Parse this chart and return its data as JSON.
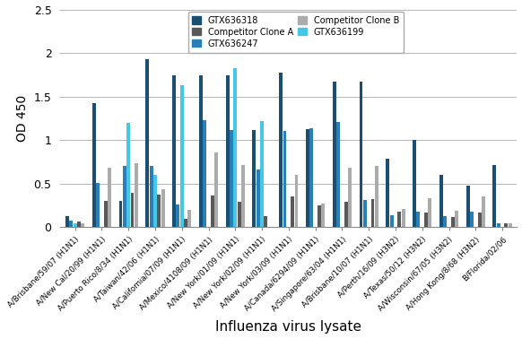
{
  "categories": [
    "A/Brisbane/59/07 (H1N1)",
    "A/New Cal/20/99 (H1N1)",
    "A/Puerto Rico/8/34 (H1N1)",
    "A/Taiwan/42/06 (H1N1)",
    "A/California/07/09 (H1N1)",
    "A/Mexico/4108/09 (H1N1)",
    "A/New York/01/09 (H1N1)",
    "A/New York/02/09 (H1N1)",
    "A/New York/03/09 (H1N1)",
    "A/Canada/6294/09 (H1N1)",
    "A/Singapore/63/04 (H1N1)",
    "A/Brisbane/10/07 (H1N1)",
    "A/Perth/16/09 (H3N2)",
    "A/Texas/50/12 (H3N2)",
    "A/Wisconsin/67/05 (H3N2)",
    "A/Hong Kong/8/68 (H3N2)",
    "B/Florida/02/06"
  ],
  "series": {
    "GTX636318": [
      0.13,
      1.43,
      0.3,
      1.93,
      1.74,
      1.74,
      1.74,
      1.12,
      1.78,
      1.13,
      1.67,
      1.67,
      0.79,
      1.0,
      0.6,
      0.48,
      0.71
    ],
    "GTX636247": [
      0.08,
      0.51,
      0.7,
      0.7,
      0.26,
      1.23,
      1.12,
      0.66,
      1.11,
      1.14,
      1.21,
      0.31,
      0.14,
      0.18,
      0.13,
      0.18,
      0.05
    ],
    "GTX636199": [
      0.05,
      0.0,
      1.2,
      0.6,
      1.63,
      0.0,
      1.83,
      1.22,
      0.0,
      0.0,
      0.0,
      0.0,
      0.0,
      0.0,
      0.0,
      0.0,
      0.0
    ],
    "Competitor Clone A": [
      0.07,
      0.3,
      0.4,
      0.38,
      0.1,
      0.36,
      0.29,
      0.13,
      0.35,
      0.25,
      0.29,
      0.32,
      0.18,
      0.17,
      0.12,
      0.17,
      0.05
    ],
    "Competitor Clone B": [
      0.05,
      0.68,
      0.74,
      0.44,
      0.2,
      0.86,
      0.72,
      0.0,
      0.6,
      0.27,
      0.68,
      0.7,
      0.21,
      0.33,
      0.19,
      0.35,
      0.05
    ]
  },
  "colors": {
    "GTX636318": "#1B4F72",
    "GTX636247": "#2980B9",
    "GTX636199": "#45C8E8",
    "Competitor Clone A": "#595959",
    "Competitor Clone B": "#ABABAB"
  },
  "series_order": [
    "GTX636318",
    "GTX636247",
    "GTX636199",
    "Competitor Clone A",
    "Competitor Clone B"
  ],
  "legend_order": [
    "GTX636318",
    "Competitor Clone A",
    "GTX636247",
    "Competitor Clone B",
    "GTX636199"
  ],
  "ylabel": "OD 450",
  "xlabel": "Influenza virus lysate",
  "ylim": [
    0,
    2.5
  ],
  "yticks": [
    0,
    0.5,
    1.0,
    1.5,
    2.0,
    2.5
  ]
}
